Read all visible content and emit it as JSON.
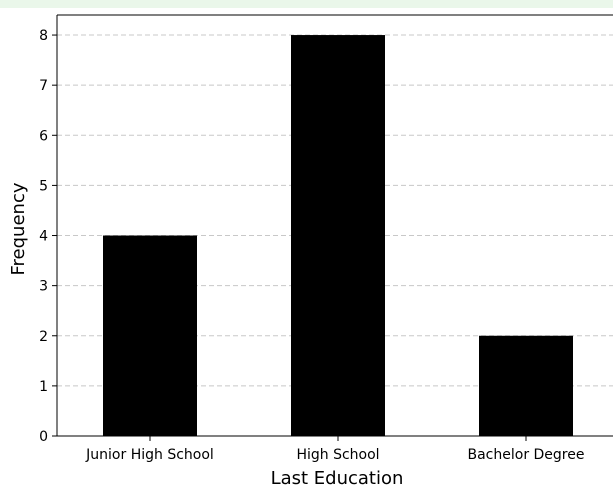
{
  "chart_data": {
    "type": "bar",
    "categories": [
      "Junior High School",
      "High School",
      "Bachelor Degree"
    ],
    "values": [
      4,
      8,
      2
    ],
    "title": "",
    "xlabel": "Last Education",
    "ylabel": "Frequency",
    "ylim": [
      0,
      8.4
    ],
    "yticks": [
      0,
      1,
      2,
      3,
      4,
      5,
      6,
      7,
      8
    ],
    "grid": "y-dashed",
    "bar_color": "#000000",
    "grid_color": "#c8c8c8"
  }
}
